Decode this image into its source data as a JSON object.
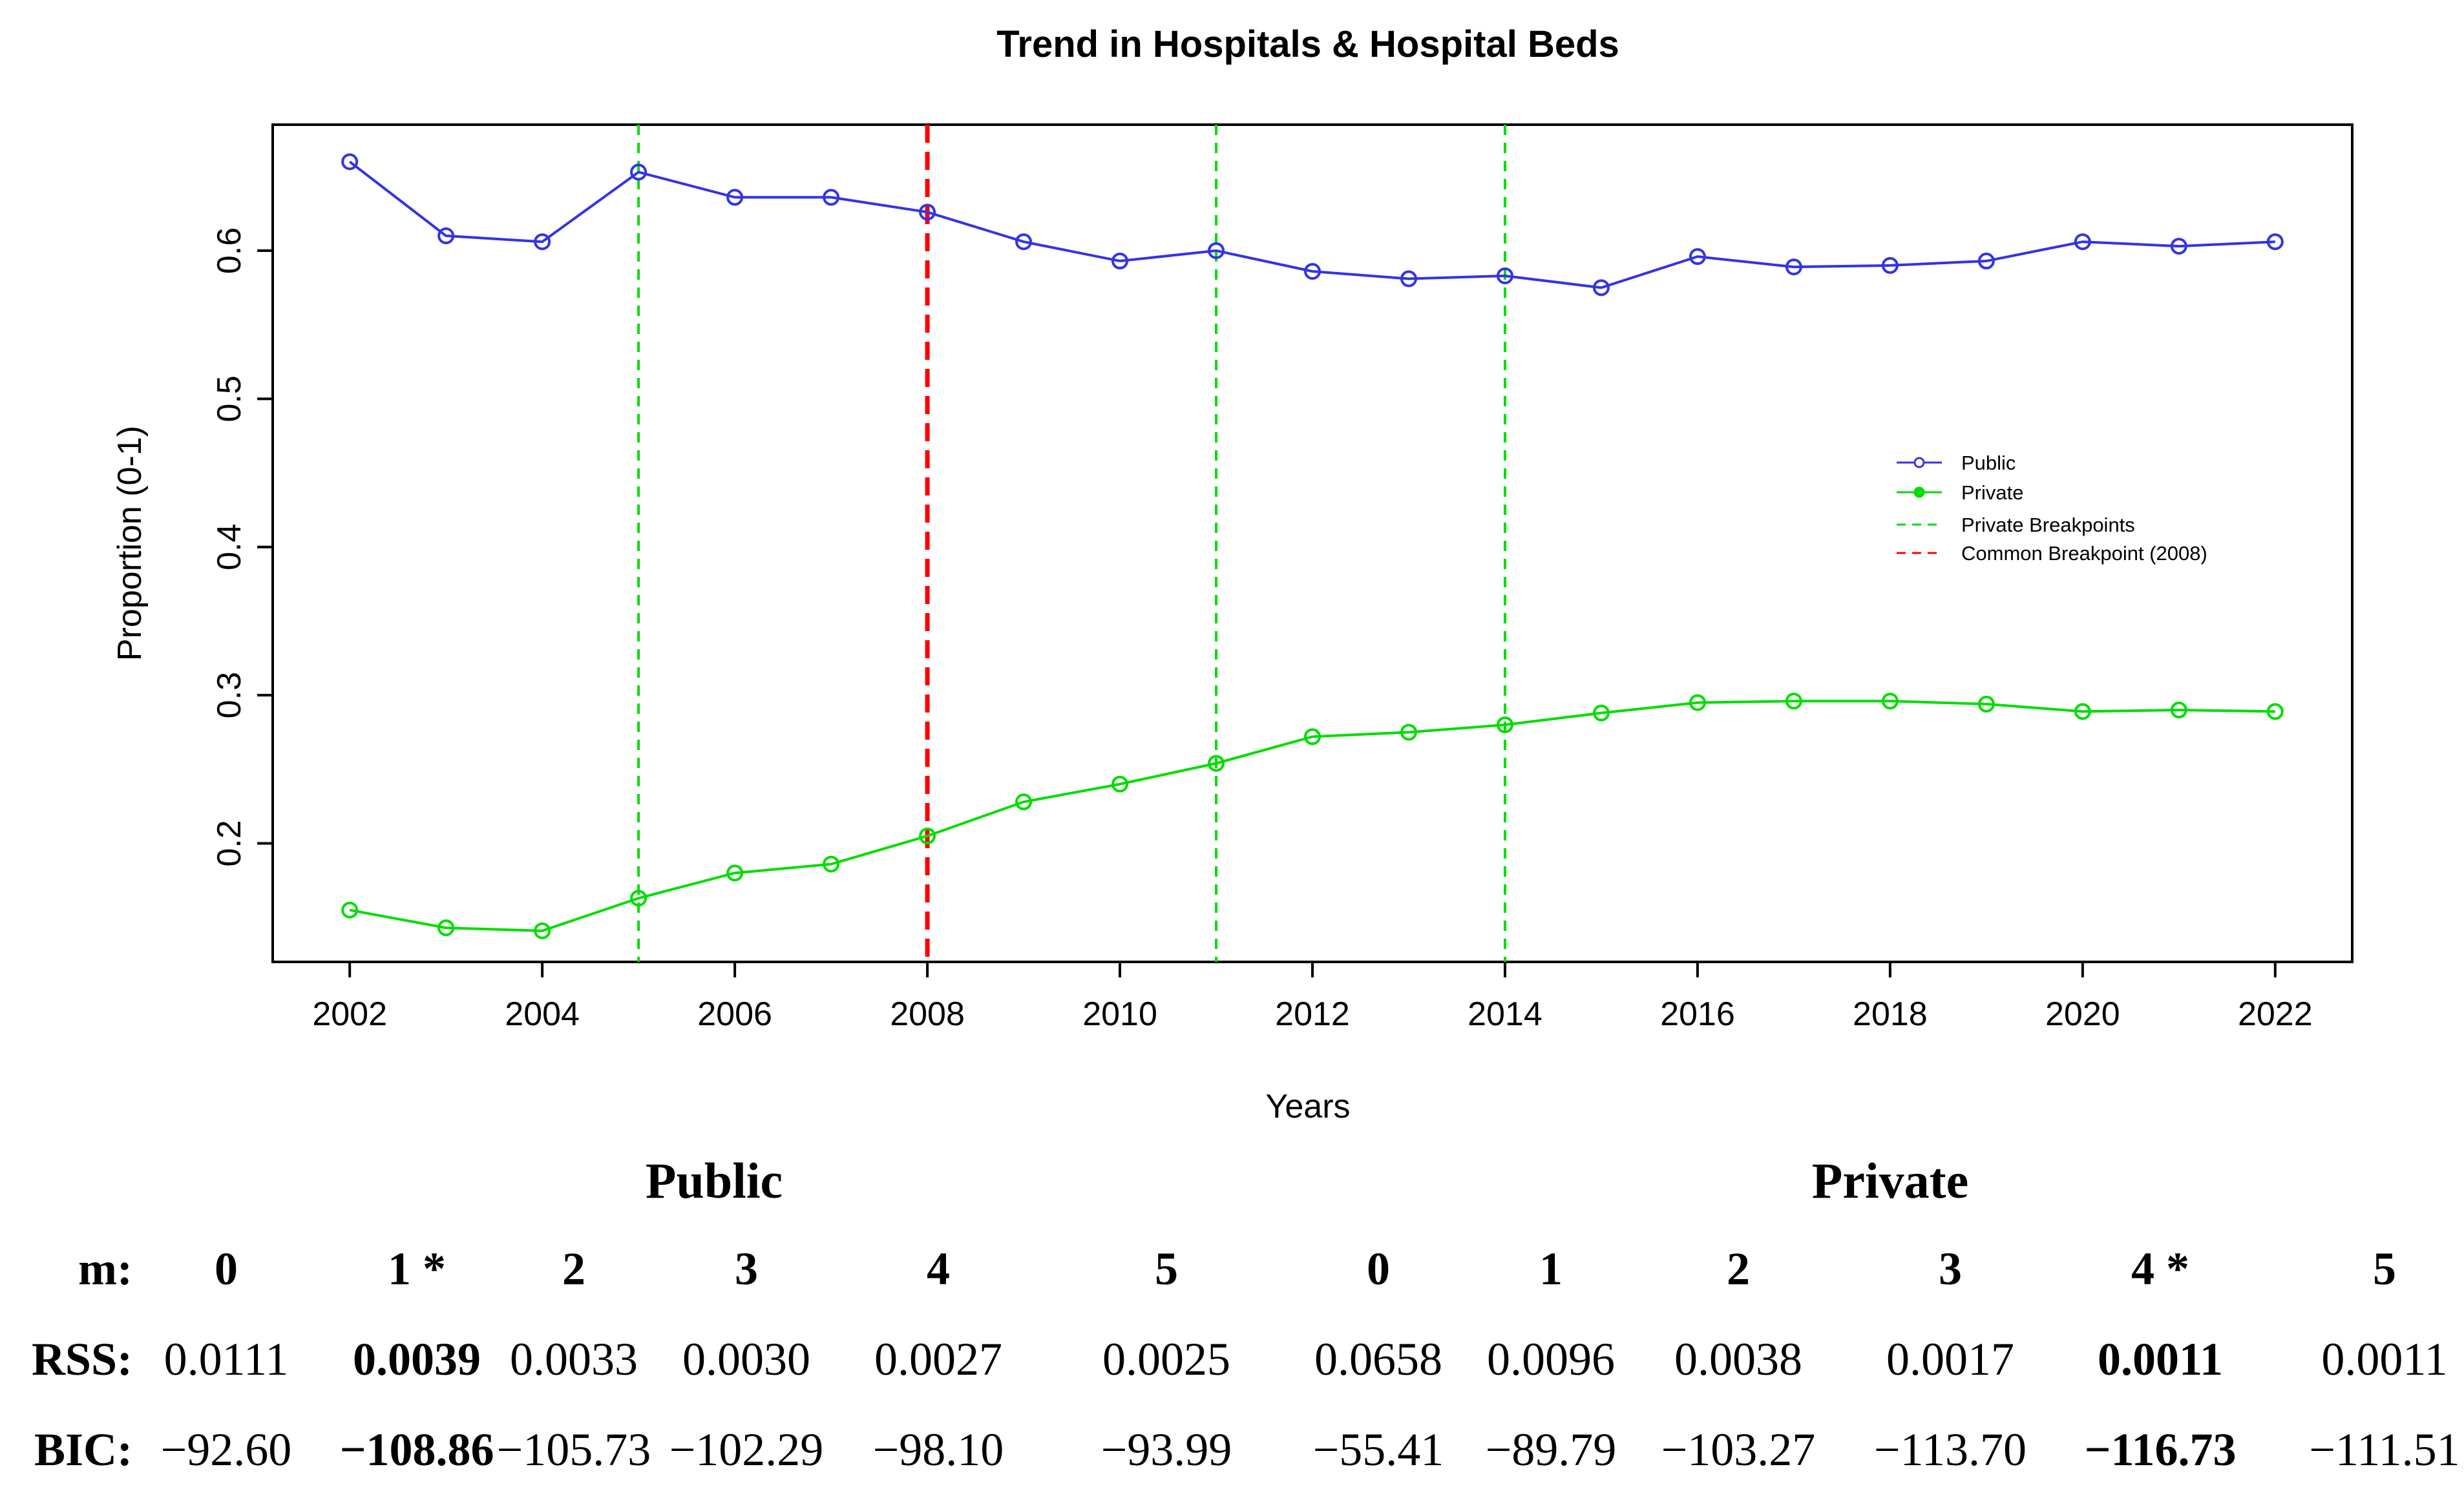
{
  "chart_data": {
    "type": "line",
    "title": "Trend in Hospitals & Hospital Beds",
    "xlabel": "Years",
    "ylabel": "Proportion (0-1)",
    "xlim": [
      2001.2,
      2022.8
    ],
    "ylim": [
      0.12,
      0.685
    ],
    "x_ticks": [
      "2002",
      "2004",
      "2006",
      "2008",
      "2010",
      "2012",
      "2014",
      "2016",
      "2018",
      "2020",
      "2022"
    ],
    "y_ticks": [
      "0.2",
      "0.3",
      "0.4",
      "0.5",
      "0.6"
    ],
    "x": [
      2002,
      2003,
      2004,
      2005,
      2006,
      2007,
      2008,
      2009,
      2010,
      2011,
      2012,
      2013,
      2014,
      2015,
      2016,
      2017,
      2018,
      2019,
      2020,
      2021,
      2022
    ],
    "series": [
      {
        "name": "Public",
        "color": "#3333e6",
        "values": [
          0.66,
          0.61,
          0.606,
          0.653,
          0.636,
          0.636,
          0.626,
          0.606,
          0.593,
          0.6,
          0.586,
          0.581,
          0.583,
          0.575,
          0.596,
          0.589,
          0.59,
          0.593,
          0.606,
          0.603,
          0.606
        ]
      },
      {
        "name": "Private",
        "color": "#00dd00",
        "values": [
          0.155,
          0.143,
          0.141,
          0.163,
          0.18,
          0.186,
          0.205,
          0.228,
          0.24,
          0.254,
          0.272,
          0.275,
          0.28,
          0.288,
          0.295,
          0.296,
          0.296,
          0.294,
          0.289,
          0.29,
          0.289
        ]
      }
    ],
    "breakpoints": [
      {
        "name": "Private Breakpoints",
        "x": [
          2005,
          2011,
          2014
        ],
        "color": "#00dd00"
      },
      {
        "name": "Common Breakpoint (2008)",
        "x": [
          2008
        ],
        "color": "#ff0000"
      }
    ],
    "legend": [
      "Public",
      "Private",
      "Private Breakpoints",
      "Common Breakpoint (2008)"
    ],
    "legend_position": "right"
  },
  "table": {
    "groups": [
      "Public",
      "Private"
    ],
    "row_labels": {
      "m": "m:",
      "rss": "RSS:",
      "bic": "BIC:"
    },
    "columns": [
      {
        "m": "0",
        "rss": "0.0111",
        "bic": "−92.60",
        "bold": false
      },
      {
        "m": "1 *",
        "rss": "0.0039",
        "bic": "−108.86",
        "bold": true
      },
      {
        "m": "2",
        "rss": "0.0033",
        "bic": "−105.73",
        "bold": false
      },
      {
        "m": "3",
        "rss": "0.0030",
        "bic": "−102.29",
        "bold": false
      },
      {
        "m": "4",
        "rss": "0.0027",
        "bic": "−98.10",
        "bold": false
      },
      {
        "m": "5",
        "rss": "0.0025",
        "bic": "−93.99",
        "bold": false
      },
      {
        "m": "0",
        "rss": "0.0658",
        "bic": "−55.41",
        "bold": false
      },
      {
        "m": "1",
        "rss": "0.0096",
        "bic": "−89.79",
        "bold": false
      },
      {
        "m": "2",
        "rss": "0.0038",
        "bic": "−103.27",
        "bold": false
      },
      {
        "m": "3",
        "rss": "0.0017",
        "bic": "−113.70",
        "bold": false
      },
      {
        "m": "4 *",
        "rss": "0.0011",
        "bic": "−116.73",
        "bold": true
      },
      {
        "m": "5",
        "rss": "0.0011",
        "bic": "−111.51",
        "bold": false
      }
    ]
  }
}
